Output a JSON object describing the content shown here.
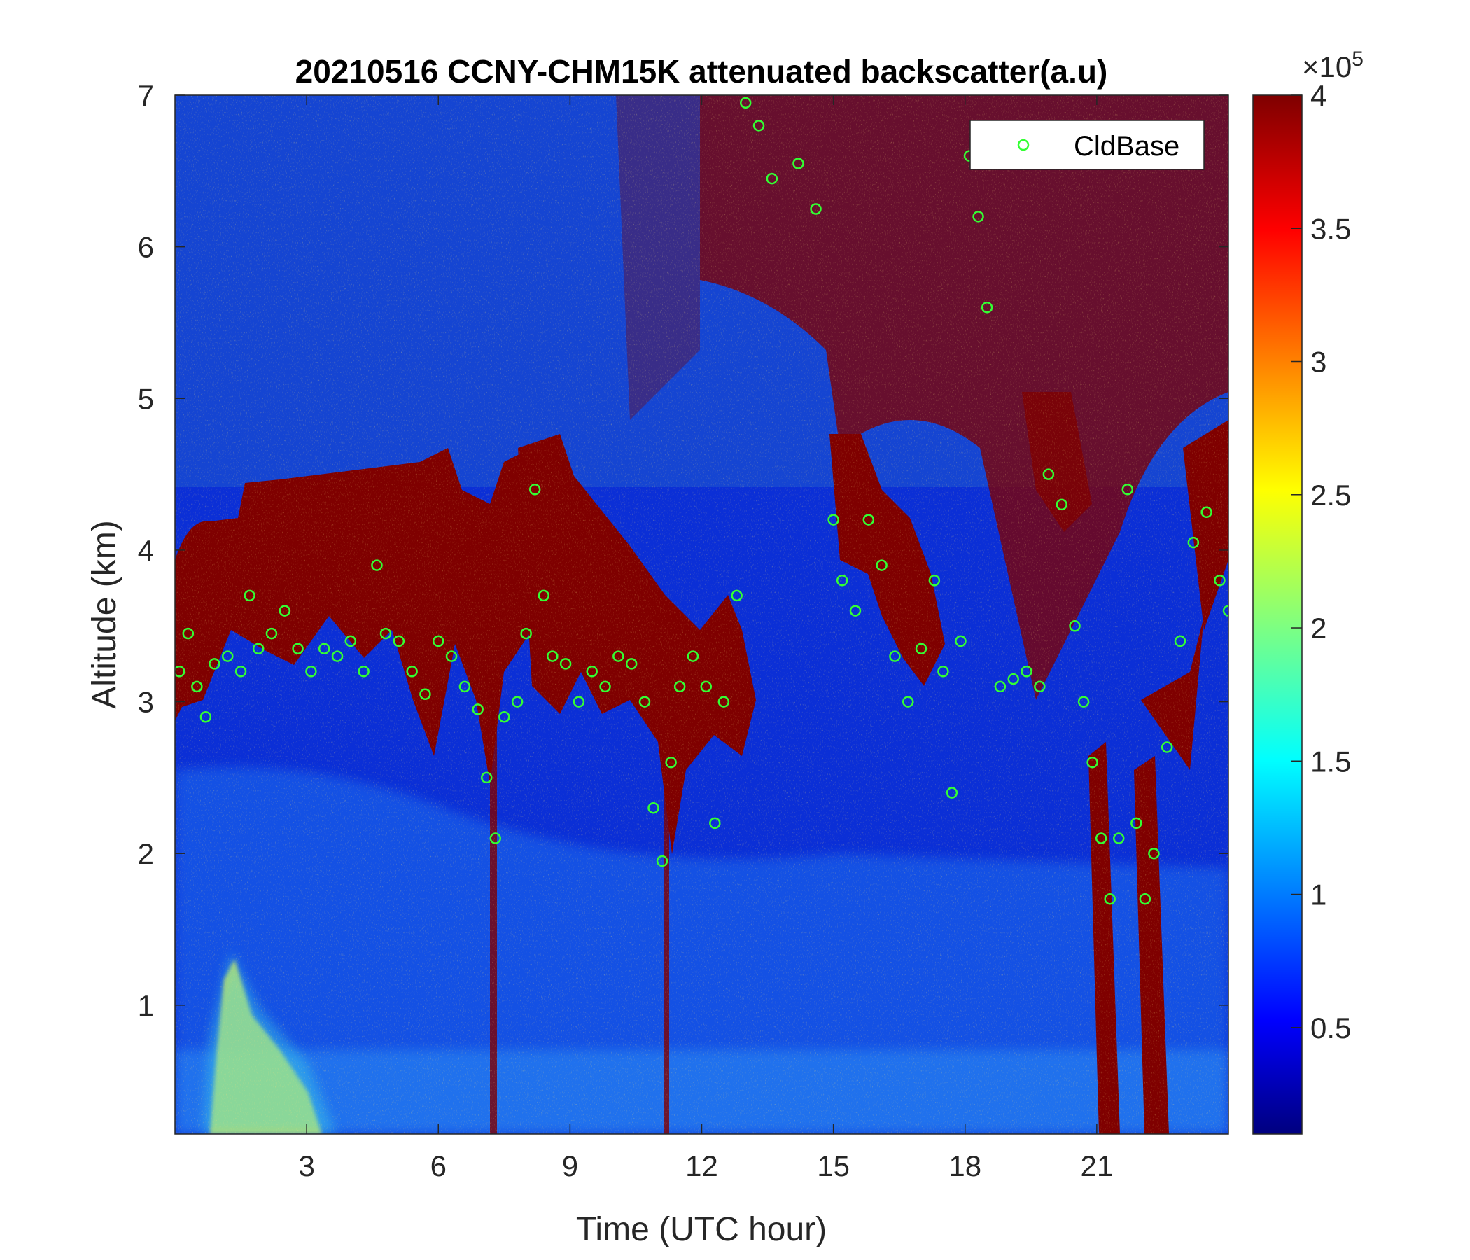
{
  "chart_data": {
    "type": "heatmap",
    "title": "20210516 CCNY-CHM15K attenuated backscatter(a.u)",
    "xlabel": "Time (UTC hour)",
    "ylabel": "Altitude (km)",
    "xlim": [
      0,
      24
    ],
    "ylim": [
      0.15,
      7
    ],
    "xticks": [
      "3",
      "6",
      "9",
      "12",
      "15",
      "18",
      "21"
    ],
    "yticks": [
      "1",
      "2",
      "3",
      "4",
      "5",
      "6",
      "7"
    ],
    "colorbar": {
      "range": [
        0.1,
        4
      ],
      "ticks": [
        "0.5",
        "1",
        "1.5",
        "2",
        "2.5",
        "3",
        "3.5",
        "4"
      ],
      "exponent_label": "×10",
      "exponent": "5",
      "colormap": "jet"
    },
    "legend": {
      "position": "top-right",
      "entries": [
        "CldBase"
      ]
    },
    "series": [
      {
        "name": "CldBase",
        "marker": "circle",
        "color": "#33ff33",
        "points": [
          [
            0.1,
            3.2
          ],
          [
            0.3,
            3.45
          ],
          [
            0.5,
            3.1
          ],
          [
            0.7,
            2.9
          ],
          [
            0.9,
            3.25
          ],
          [
            1.2,
            3.3
          ],
          [
            1.5,
            3.2
          ],
          [
            1.7,
            3.7
          ],
          [
            1.9,
            3.35
          ],
          [
            2.2,
            3.45
          ],
          [
            2.5,
            3.6
          ],
          [
            2.8,
            3.35
          ],
          [
            3.1,
            3.2
          ],
          [
            3.4,
            3.35
          ],
          [
            3.7,
            3.3
          ],
          [
            4.0,
            3.4
          ],
          [
            4.3,
            3.2
          ],
          [
            4.6,
            3.9
          ],
          [
            4.8,
            3.45
          ],
          [
            5.1,
            3.4
          ],
          [
            5.4,
            3.2
          ],
          [
            5.7,
            3.05
          ],
          [
            6.0,
            3.4
          ],
          [
            6.3,
            3.3
          ],
          [
            6.6,
            3.1
          ],
          [
            6.9,
            2.95
          ],
          [
            7.1,
            2.5
          ],
          [
            7.3,
            2.1
          ],
          [
            7.5,
            2.9
          ],
          [
            7.8,
            3.0
          ],
          [
            8.0,
            3.45
          ],
          [
            8.2,
            4.4
          ],
          [
            8.4,
            3.7
          ],
          [
            8.6,
            3.3
          ],
          [
            8.9,
            3.25
          ],
          [
            9.2,
            3.0
          ],
          [
            9.5,
            3.2
          ],
          [
            9.8,
            3.1
          ],
          [
            10.1,
            3.3
          ],
          [
            10.4,
            3.25
          ],
          [
            10.7,
            3.0
          ],
          [
            10.9,
            2.3
          ],
          [
            11.1,
            1.95
          ],
          [
            11.3,
            2.6
          ],
          [
            11.5,
            3.1
          ],
          [
            11.8,
            3.3
          ],
          [
            12.1,
            3.1
          ],
          [
            12.3,
            2.2
          ],
          [
            12.5,
            3.0
          ],
          [
            12.8,
            3.7
          ],
          [
            13.0,
            6.95
          ],
          [
            13.3,
            6.8
          ],
          [
            13.6,
            6.45
          ],
          [
            14.2,
            6.55
          ],
          [
            14.6,
            6.25
          ],
          [
            15.0,
            4.2
          ],
          [
            15.2,
            3.8
          ],
          [
            15.5,
            3.6
          ],
          [
            15.8,
            4.2
          ],
          [
            16.1,
            3.9
          ],
          [
            16.4,
            3.3
          ],
          [
            16.7,
            3.0
          ],
          [
            17.0,
            3.35
          ],
          [
            17.3,
            3.8
          ],
          [
            17.5,
            3.2
          ],
          [
            17.7,
            2.4
          ],
          [
            17.9,
            3.4
          ],
          [
            18.1,
            6.6
          ],
          [
            18.3,
            6.2
          ],
          [
            18.5,
            5.6
          ],
          [
            18.8,
            3.1
          ],
          [
            19.1,
            3.15
          ],
          [
            19.4,
            3.2
          ],
          [
            19.7,
            3.1
          ],
          [
            19.9,
            4.5
          ],
          [
            20.2,
            4.3
          ],
          [
            20.5,
            3.5
          ],
          [
            20.7,
            3.0
          ],
          [
            20.9,
            2.6
          ],
          [
            21.1,
            2.1
          ],
          [
            21.3,
            1.7
          ],
          [
            21.5,
            2.1
          ],
          [
            21.7,
            4.4
          ],
          [
            21.9,
            2.2
          ],
          [
            22.1,
            1.7
          ],
          [
            22.3,
            2.0
          ],
          [
            22.6,
            2.7
          ],
          [
            22.9,
            3.4
          ],
          [
            23.2,
            4.05
          ],
          [
            23.5,
            4.25
          ],
          [
            23.8,
            3.8
          ],
          [
            24.0,
            3.6
          ]
        ]
      }
    ],
    "notes_features": [
      "dense aerosol/cloud layer (saturated) between ~3 and ~4.5 km from 0 to 8 UTC",
      "high signal above ~5 km after 12 UTC",
      "precipitation shafts near 7.3, 11.2, 21-22 UTC"
    ]
  }
}
